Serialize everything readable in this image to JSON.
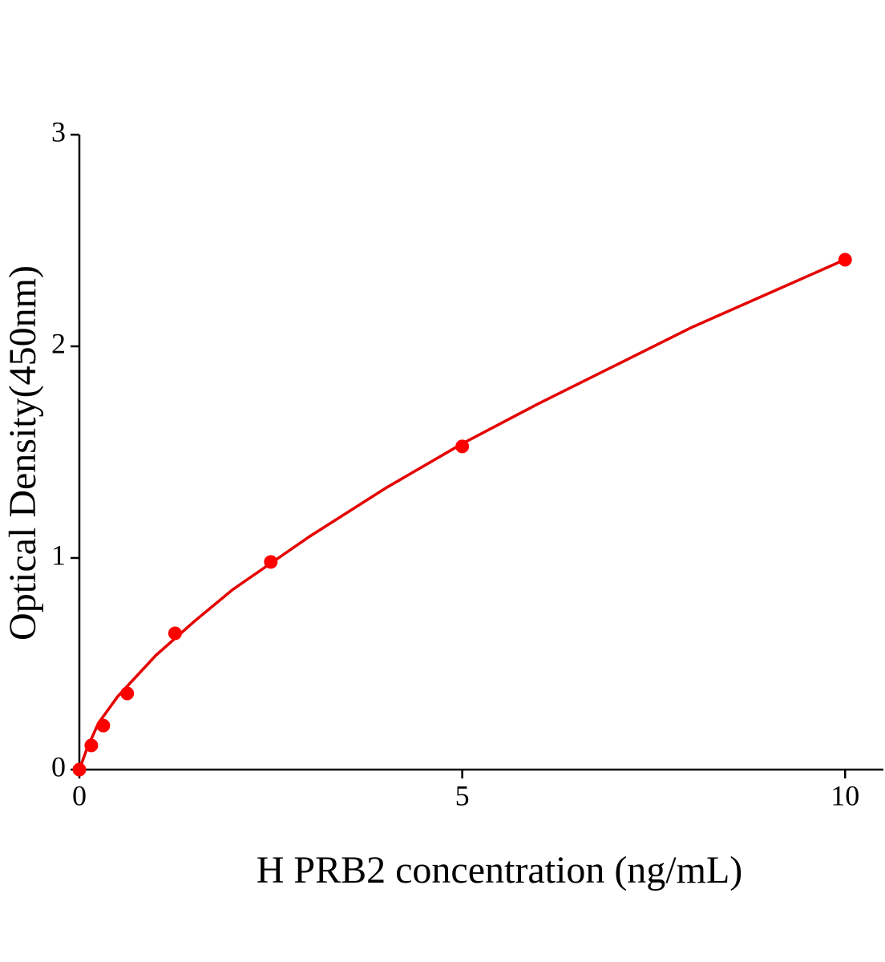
{
  "chart_data": {
    "type": "scatter",
    "x_label": "H PRB2 concentration (ng/mL)",
    "y_label": "Optical Density(450nm)",
    "x": [
      0,
      0.156,
      0.3125,
      0.625,
      1.25,
      2.5,
      5,
      10
    ],
    "values": [
      0,
      0.114,
      0.208,
      0.36,
      0.644,
      0.981,
      1.527,
      2.409
    ],
    "color": "#ff0000",
    "fit": {
      "type": "line",
      "color": "#e50000",
      "x": [
        0,
        0.1,
        0.25,
        0.5,
        1,
        1.5,
        2,
        3,
        4,
        5,
        6,
        7,
        8,
        9,
        10
      ],
      "values": [
        0,
        0.1,
        0.22,
        0.345,
        0.54,
        0.7,
        0.85,
        1.1,
        1.33,
        1.54,
        1.73,
        1.91,
        2.09,
        2.25,
        2.41
      ]
    },
    "xlim": [
      0,
      10.5
    ],
    "xticks": [
      0,
      5,
      10
    ],
    "ylim": [
      0,
      3
    ],
    "yticks": [
      0,
      1,
      2,
      3
    ]
  }
}
